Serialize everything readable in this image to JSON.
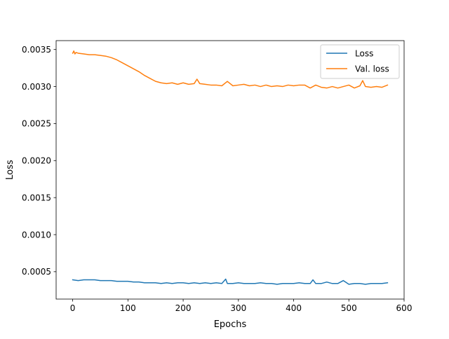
{
  "chart_data": {
    "type": "line",
    "title": "",
    "xlabel": "Epochs",
    "ylabel": "Loss",
    "xlim": [
      -30,
      600
    ],
    "ylim": [
      0.00013,
      0.00362
    ],
    "xticks": [
      0,
      100,
      200,
      300,
      400,
      500,
      600
    ],
    "xtick_labels": [
      "0",
      "100",
      "200",
      "300",
      "400",
      "500",
      "600"
    ],
    "yticks": [
      0.0005,
      0.001,
      0.0015,
      0.002,
      0.0025,
      0.003,
      0.0035
    ],
    "ytick_labels": [
      "0.0005",
      "0.0010",
      "0.0015",
      "0.0020",
      "0.0025",
      "0.0030",
      "0.0035"
    ],
    "grid": false,
    "legend_position": "top-right",
    "series": [
      {
        "name": "Loss",
        "color": "#1f77b4",
        "x": [
          0,
          10,
          20,
          30,
          40,
          50,
          60,
          70,
          80,
          90,
          100,
          110,
          120,
          130,
          140,
          150,
          160,
          170,
          180,
          190,
          200,
          210,
          220,
          230,
          240,
          250,
          260,
          270,
          277,
          280,
          290,
          300,
          310,
          320,
          330,
          340,
          350,
          360,
          370,
          380,
          390,
          400,
          410,
          420,
          430,
          435,
          440,
          450,
          460,
          470,
          480,
          490,
          500,
          510,
          520,
          530,
          540,
          550,
          560,
          570
        ],
        "y": [
          0.00039,
          0.00038,
          0.00039,
          0.00039,
          0.00039,
          0.00038,
          0.00038,
          0.00038,
          0.00037,
          0.00037,
          0.00037,
          0.00036,
          0.00036,
          0.00035,
          0.00035,
          0.00035,
          0.00034,
          0.00035,
          0.00034,
          0.00035,
          0.00035,
          0.00034,
          0.00035,
          0.00034,
          0.00035,
          0.00034,
          0.00035,
          0.00034,
          0.0004,
          0.00034,
          0.00034,
          0.00035,
          0.00034,
          0.00034,
          0.00034,
          0.00035,
          0.00034,
          0.00034,
          0.00033,
          0.00034,
          0.00034,
          0.00034,
          0.00035,
          0.00034,
          0.00034,
          0.00039,
          0.00034,
          0.00034,
          0.00036,
          0.00034,
          0.00034,
          0.00038,
          0.00033,
          0.00034,
          0.00034,
          0.00033,
          0.00034,
          0.00034,
          0.00034,
          0.00035
        ]
      },
      {
        "name": "Val. loss",
        "color": "#ff7f0e",
        "x": [
          0,
          2,
          4,
          6,
          10,
          20,
          30,
          40,
          50,
          60,
          70,
          80,
          90,
          100,
          110,
          120,
          130,
          140,
          150,
          160,
          170,
          180,
          190,
          200,
          210,
          220,
          225,
          230,
          240,
          250,
          260,
          270,
          280,
          290,
          300,
          310,
          320,
          330,
          340,
          350,
          360,
          370,
          380,
          390,
          400,
          410,
          420,
          430,
          440,
          450,
          460,
          470,
          480,
          490,
          500,
          510,
          520,
          525,
          530,
          540,
          550,
          560,
          570
        ],
        "y": [
          0.00345,
          0.00348,
          0.00344,
          0.00346,
          0.00345,
          0.00344,
          0.00343,
          0.00343,
          0.00342,
          0.00341,
          0.00339,
          0.00336,
          0.00332,
          0.00328,
          0.00324,
          0.0032,
          0.00315,
          0.00311,
          0.00307,
          0.00305,
          0.00304,
          0.00305,
          0.00303,
          0.00305,
          0.00303,
          0.00304,
          0.0031,
          0.00304,
          0.00303,
          0.00302,
          0.00302,
          0.00301,
          0.00307,
          0.00301,
          0.00302,
          0.00303,
          0.00301,
          0.00302,
          0.003,
          0.00302,
          0.003,
          0.00301,
          0.003,
          0.00302,
          0.00301,
          0.00302,
          0.00302,
          0.00298,
          0.00302,
          0.00299,
          0.00298,
          0.003,
          0.00298,
          0.003,
          0.00302,
          0.00298,
          0.00301,
          0.00308,
          0.003,
          0.00299,
          0.003,
          0.00299,
          0.00302
        ]
      }
    ]
  }
}
